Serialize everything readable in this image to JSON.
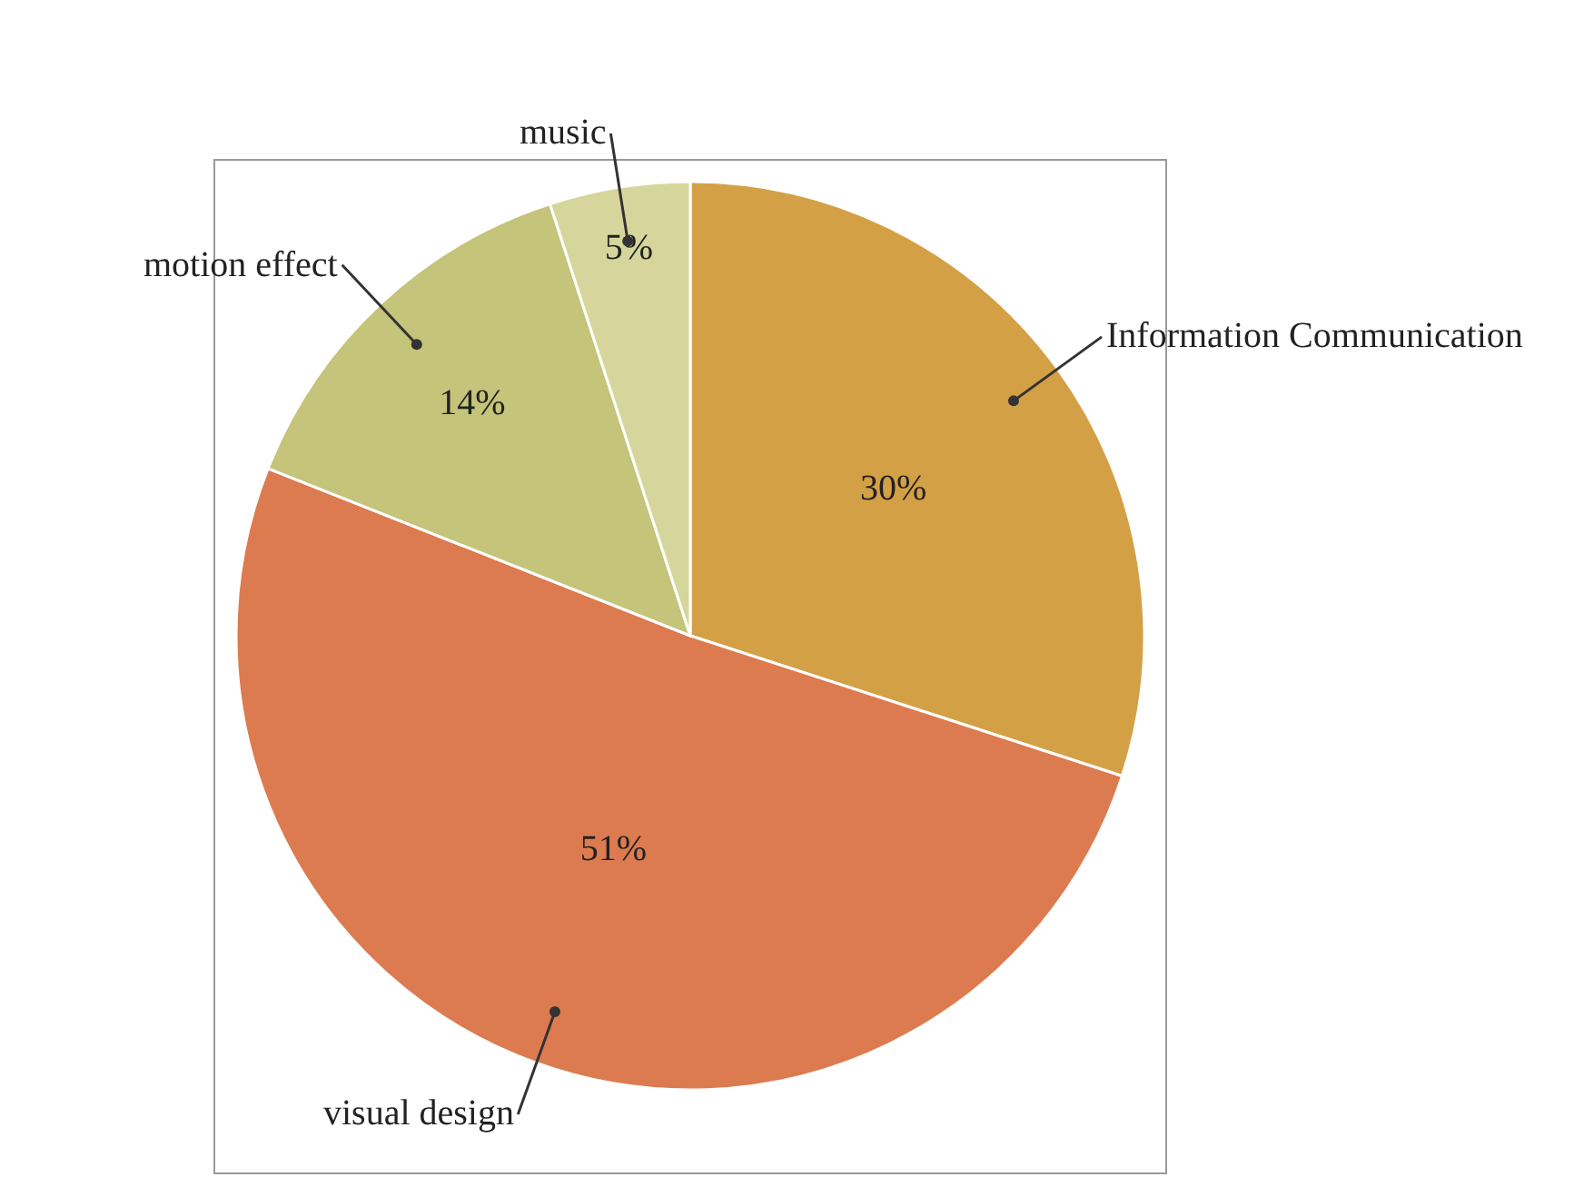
{
  "chart_data": {
    "type": "pie",
    "categories": [
      "Information Communication",
      "visual design",
      "motion effect",
      "music"
    ],
    "values": [
      30,
      51,
      14,
      5
    ],
    "colors": [
      "#d4a046",
      "#dc7b4f",
      "#c4c47a",
      "#d6d69c"
    ],
    "value_labels": [
      "30%",
      "51%",
      "14%",
      "5%"
    ]
  }
}
